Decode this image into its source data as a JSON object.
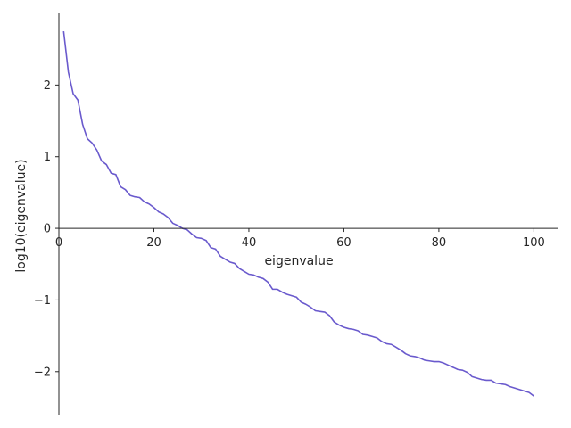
{
  "chart_data": {
    "type": "line",
    "title": "",
    "xlabel": "eigenvalue",
    "ylabel": "log10(eigenvalue)",
    "xlim": [
      0,
      105
    ],
    "ylim": [
      -2.6,
      3.0
    ],
    "xticks": [
      0,
      20,
      40,
      60,
      80,
      100
    ],
    "xtick_labels": [
      "0",
      "20",
      "40",
      "60",
      "80",
      "100"
    ],
    "yticks": [
      -2,
      -1,
      0,
      1,
      2
    ],
    "ytick_labels": [
      "−2",
      "−1",
      "0",
      "1",
      "2"
    ],
    "grid": false,
    "legend": "none",
    "line_color": "#6a5acd",
    "series": [
      {
        "x": [
          1,
          2,
          3,
          4,
          5,
          6,
          7,
          8,
          9,
          10,
          11,
          12,
          13,
          14,
          15,
          16,
          17,
          18,
          19,
          20,
          21,
          22,
          23,
          24,
          25,
          26,
          27,
          28,
          29,
          30,
          31,
          32,
          33,
          34,
          35,
          36,
          37,
          38,
          39,
          40,
          41,
          42,
          43,
          44,
          45,
          46,
          47,
          48,
          49,
          50,
          51,
          52,
          53,
          54,
          55,
          56,
          57,
          58,
          59,
          60,
          61,
          62,
          63,
          64,
          65,
          66,
          67,
          68,
          69,
          70,
          71,
          72,
          73,
          74,
          75,
          76,
          77,
          78,
          79,
          80,
          81,
          82,
          83,
          84,
          85,
          86,
          87,
          88,
          89,
          90,
          91,
          92,
          93,
          94,
          95,
          96,
          97,
          98,
          99,
          100
        ],
        "values": [
          2.75,
          2.18,
          1.88,
          1.79,
          1.45,
          1.25,
          1.19,
          1.09,
          0.94,
          0.89,
          0.77,
          0.75,
          0.58,
          0.54,
          0.46,
          0.44,
          0.43,
          0.37,
          0.34,
          0.29,
          0.23,
          0.2,
          0.15,
          0.07,
          0.04,
          0.0,
          -0.02,
          -0.08,
          -0.13,
          -0.14,
          -0.17,
          -0.27,
          -0.29,
          -0.39,
          -0.43,
          -0.47,
          -0.49,
          -0.56,
          -0.6,
          -0.64,
          -0.65,
          -0.68,
          -0.7,
          -0.75,
          -0.85,
          -0.85,
          -0.89,
          -0.92,
          -0.94,
          -0.96,
          -1.03,
          -1.06,
          -1.1,
          -1.15,
          -1.16,
          -1.17,
          -1.22,
          -1.31,
          -1.35,
          -1.38,
          -1.4,
          -1.41,
          -1.43,
          -1.48,
          -1.49,
          -1.51,
          -1.53,
          -1.58,
          -1.61,
          -1.62,
          -1.66,
          -1.7,
          -1.75,
          -1.78,
          -1.79,
          -1.81,
          -1.84,
          -1.85,
          -1.86,
          -1.86,
          -1.88,
          -1.91,
          -1.94,
          -1.97,
          -1.98,
          -2.01,
          -2.07,
          -2.09,
          -2.11,
          -2.12,
          -2.12,
          -2.16,
          -2.17,
          -2.18,
          -2.21,
          -2.23,
          -2.25,
          -2.27,
          -2.29,
          -2.34
        ]
      }
    ]
  }
}
